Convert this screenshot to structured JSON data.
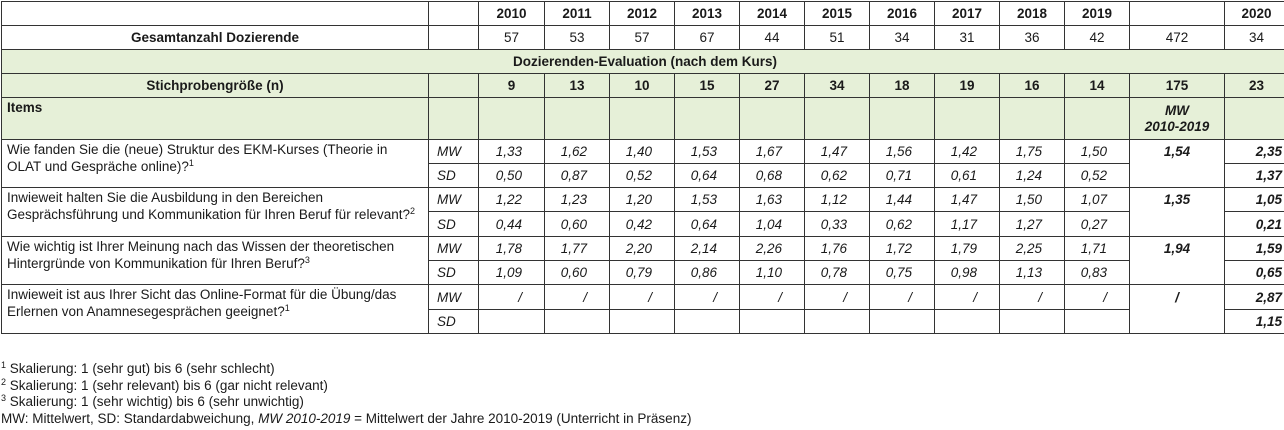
{
  "years": [
    "2010",
    "2011",
    "2012",
    "2013",
    "2014",
    "2015",
    "2016",
    "2017",
    "2018",
    "2019",
    "",
    "2020"
  ],
  "gesamt": {
    "label": "Gesamtanzahl Dozierende",
    "values": [
      "57",
      "53",
      "57",
      "67",
      "44",
      "51",
      "34",
      "31",
      "36",
      "42",
      "472",
      "34"
    ]
  },
  "section_title": "Dozierenden-Evaluation (nach dem Kurs)",
  "stichprobe": {
    "label": "Stichprobengröße (n)",
    "values": [
      "9",
      "13",
      "10",
      "15",
      "27",
      "34",
      "18",
      "19",
      "16",
      "14",
      "175",
      "23"
    ]
  },
  "items_header": {
    "label": "Items",
    "mw_line1": "MW",
    "mw_line2": "2010-2019"
  },
  "labels": {
    "mw": "MW",
    "sd": "SD"
  },
  "items": [
    {
      "text": "Wie fanden Sie die (neue) Struktur des EKM-Kurses (Theorie in OLAT und Gespräche online)?",
      "sup": "1",
      "mw": [
        "1,33",
        "1,62",
        "1,40",
        "1,53",
        "1,67",
        "1,47",
        "1,56",
        "1,42",
        "1,75",
        "1,50"
      ],
      "sd": [
        "0,50",
        "0,87",
        "0,52",
        "0,64",
        "0,68",
        "0,62",
        "0,71",
        "0,61",
        "1,24",
        "0,52"
      ],
      "mw_avg": "1,54",
      "mw_2020": "2,35",
      "sd_2020": "1,37"
    },
    {
      "text": "Inwieweit halten Sie die Ausbildung in den Bereichen Gesprächsführung und Kommunikation für Ihren Beruf für relevant?",
      "sup": "2",
      "mw": [
        "1,22",
        "1,23",
        "1,20",
        "1,53",
        "1,63",
        "1,12",
        "1,44",
        "1,47",
        "1,50",
        "1,07"
      ],
      "sd": [
        "0,44",
        "0,60",
        "0,42",
        "0,64",
        "1,04",
        "0,33",
        "0,62",
        "1,17",
        "1,27",
        "0,27"
      ],
      "mw_avg": "1,35",
      "mw_2020": "1,05",
      "sd_2020": "0,21"
    },
    {
      "text": "Wie wichtig ist Ihrer Meinung nach das Wissen der theoretischen Hintergründe von Kommunikation für Ihren Beruf?",
      "sup": "3",
      "mw": [
        "1,78",
        "1,77",
        "2,20",
        "2,14",
        "2,26",
        "1,76",
        "1,72",
        "1,79",
        "2,25",
        "1,71"
      ],
      "sd": [
        "1,09",
        "0,60",
        "0,79",
        "0,86",
        "1,10",
        "0,78",
        "0,75",
        "0,98",
        "1,13",
        "0,83"
      ],
      "mw_avg": "1,94",
      "mw_2020": "1,59",
      "sd_2020": "0,65"
    },
    {
      "text": "Inwieweit ist aus Ihrer Sicht das Online-Format für die Übung/das Erlernen von Anamnesegesprächen geeignet?",
      "sup": "1",
      "mw": [
        "/",
        "/",
        "/",
        "/",
        "/",
        "/",
        "/",
        "/",
        "/",
        "/"
      ],
      "sd": [
        "",
        "",
        "",
        "",
        "",
        "",
        "",
        "",
        "",
        ""
      ],
      "mw_avg": "/",
      "mw_2020": "2,87",
      "sd_2020": "1,15"
    }
  ],
  "footnotes": [
    {
      "sup": "1",
      "text": " Skalierung: 1 (sehr gut) bis 6 (sehr schlecht)"
    },
    {
      "sup": "2",
      "text": " Skalierung: 1 (sehr relevant) bis 6 (gar nicht relevant)"
    },
    {
      "sup": "3",
      "text": " Skalierung: 1 (sehr wichtig) bis 6 (sehr unwichtig)"
    }
  ],
  "abbrev": {
    "part1": "MW: Mittelwert, SD: Standardabweichung, ",
    "italic": "MW 2010-2019",
    "part2": " = Mittelwert der Jahre 2010-2019 (Unterricht in Präsenz)"
  },
  "colors": {
    "header_green": "#e6f0d8",
    "border": "#333333"
  }
}
